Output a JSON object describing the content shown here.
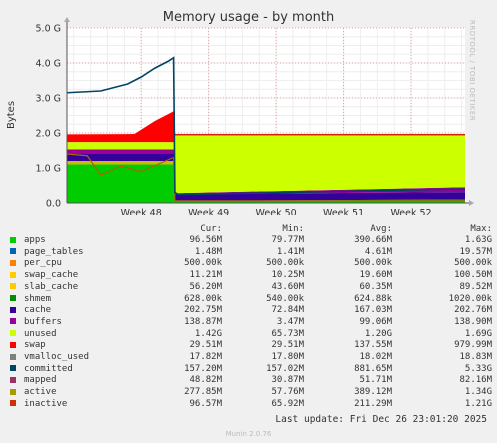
{
  "chart_data": {
    "type": "area",
    "title": "Memory usage - by month",
    "ylabel": "Bytes",
    "ylim": [
      0,
      5000000000
    ],
    "yticks": [
      {
        "value": 0,
        "label": "0.0"
      },
      {
        "value": 1000000000,
        "label": "1.0 G"
      },
      {
        "value": 2000000000,
        "label": "2.0 G"
      },
      {
        "value": 3000000000,
        "label": "3.0 G"
      },
      {
        "value": 4000000000,
        "label": "4.0 G"
      },
      {
        "value": 5000000000,
        "label": "5.0 G"
      }
    ],
    "xlim": [
      46.9,
      52.8
    ],
    "xticks": [
      {
        "value": 48,
        "label": "Week 48"
      },
      {
        "value": 49,
        "label": "Week 49"
      },
      {
        "value": 50,
        "label": "Week 50"
      },
      {
        "value": 51,
        "label": "Week 51"
      },
      {
        "value": 52,
        "label": "Week 52"
      }
    ],
    "grid": true,
    "event_week": 48.5,
    "stacked_before": [
      {
        "name": "apps",
        "color": "#00cc00",
        "value": 1100000000
      },
      {
        "name": "slab_cache",
        "color": "#ccbb00",
        "value": 100000000
      },
      {
        "name": "cache",
        "color": "#330099",
        "value": 200000000
      },
      {
        "name": "buffers",
        "color": "#990099",
        "value": 130000000
      },
      {
        "name": "unused",
        "color": "#ccff00",
        "value": 210000000
      },
      {
        "name": "swap",
        "color": "#ff0000",
        "x": [
          46.9,
          47.9,
          48.2,
          48.5
        ],
        "values": [
          220000000,
          230000000,
          600000000,
          900000000
        ]
      }
    ],
    "stacked_after": [
      {
        "name": "apps",
        "color": "#00cc00",
        "x": [
          48.5,
          52.8
        ],
        "values": [
          60000000,
          100000000
        ]
      },
      {
        "name": "cache",
        "color": "#330099",
        "x": [
          48.5,
          52.8
        ],
        "values": [
          190000000,
          210000000
        ]
      },
      {
        "name": "buffers",
        "color": "#990099",
        "x": [
          48.5,
          52.8
        ],
        "values": [
          30000000,
          140000000
        ]
      },
      {
        "name": "unused",
        "color": "#ccff00",
        "x": [
          48.5,
          52.8
        ],
        "values": [
          1680000000,
          1520000000
        ]
      }
    ],
    "committed_line": {
      "name": "committed",
      "color": "#004466",
      "x": [
        46.9,
        47.4,
        47.8,
        48.0,
        48.2,
        48.4,
        48.48,
        48.5,
        48.55,
        52.8
      ],
      "values": [
        3150000000,
        3200000000,
        3400000000,
        3600000000,
        3850000000,
        4050000000,
        4150000000,
        300000000,
        240000000,
        400000000
      ]
    },
    "active_line": {
      "name": "active",
      "color": "#aa6600",
      "x": [
        46.9,
        47.2,
        47.4,
        47.7,
        48.0,
        48.3,
        48.48,
        48.5,
        52.8
      ],
      "values": [
        1400000000,
        1350000000,
        800000000,
        1050000000,
        900000000,
        1150000000,
        1300000000,
        60000000,
        60000000
      ]
    },
    "total_line": {
      "color": "#cc0000",
      "value": 1950000000
    },
    "legend": {
      "headers": [
        "Cur:",
        "Min:",
        "Avg:",
        "Max:"
      ],
      "rows": [
        {
          "color": "#00cc00",
          "name": "apps",
          "cur": "96.56M",
          "min": "79.77M",
          "avg": "390.66M",
          "max": "1.63G"
        },
        {
          "color": "#0066b3",
          "name": "page_tables",
          "cur": "1.48M",
          "min": "1.41M",
          "avg": "4.61M",
          "max": "19.57M"
        },
        {
          "color": "#ff8000",
          "name": "per_cpu",
          "cur": "500.00k",
          "min": "500.00k",
          "avg": "500.00k",
          "max": "500.00k"
        },
        {
          "color": "#ffcc00",
          "name": "swap_cache",
          "cur": "11.21M",
          "min": "10.25M",
          "avg": "19.60M",
          "max": "100.50M"
        },
        {
          "color": "#ffcc00",
          "name": "slab_cache",
          "cur": "56.20M",
          "min": "43.60M",
          "avg": "60.35M",
          "max": "89.52M"
        },
        {
          "color": "#008f00",
          "name": "shmem",
          "cur": "628.00k",
          "min": "540.00k",
          "avg": "624.88k",
          "max": "1020.00k"
        },
        {
          "color": "#330099",
          "name": "cache",
          "cur": "202.75M",
          "min": "72.84M",
          "avg": "167.03M",
          "max": "202.76M"
        },
        {
          "color": "#990099",
          "name": "buffers",
          "cur": "138.87M",
          "min": "3.47M",
          "avg": "99.06M",
          "max": "138.90M"
        },
        {
          "color": "#ccff00",
          "name": "unused",
          "cur": "1.42G",
          "avg": "1.20G",
          "min": "65.73M",
          "max": "1.69G"
        },
        {
          "color": "#ff0000",
          "name": "swap",
          "cur": "29.51M",
          "min": "29.51M",
          "avg": "137.55M",
          "max": "979.99M"
        },
        {
          "color": "#808080",
          "name": "vmalloc_used",
          "cur": "17.82M",
          "min": "17.80M",
          "avg": "18.02M",
          "max": "18.83M"
        },
        {
          "color": "#004466",
          "name": "committed",
          "cur": "157.20M",
          "min": "157.02M",
          "avg": "881.65M",
          "max": "5.33G"
        },
        {
          "color": "#993366",
          "name": "mapped",
          "cur": "48.82M",
          "min": "30.87M",
          "avg": "51.71M",
          "max": "82.16M"
        },
        {
          "color": "#aa9900",
          "name": "active",
          "cur": "277.85M",
          "min": "57.76M",
          "avg": "389.12M",
          "max": "1.34G"
        },
        {
          "color": "#cc3300",
          "name": "inactive",
          "cur": "96.57M",
          "min": "65.92M",
          "avg": "211.29M",
          "max": "1.21G"
        }
      ]
    }
  },
  "footer": {
    "last_update": "Last update: Fri Dec 26 23:01:20 2025",
    "version": "Munin 2.0.76"
  },
  "side_credit": "RRDTOOL / TOBI OETIKER"
}
